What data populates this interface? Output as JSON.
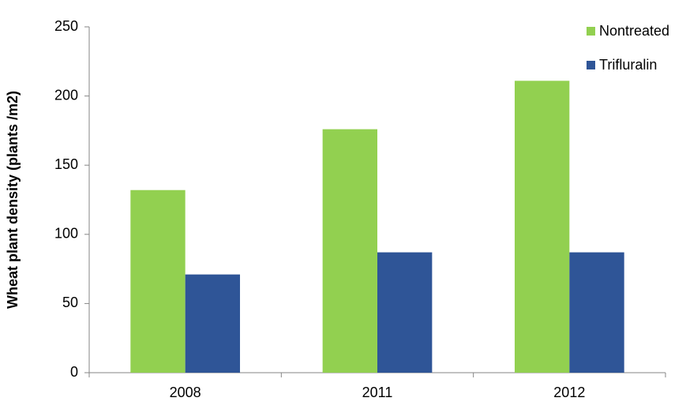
{
  "chart_data": {
    "type": "bar",
    "y_label": "Wheat plant density (plants /m2)",
    "categories": [
      "2008",
      "2011",
      "2012"
    ],
    "series": [
      {
        "name": "Nontreated",
        "color": "#92d050",
        "values": [
          132,
          176,
          211
        ]
      },
      {
        "name": "Trifluralin",
        "color": "#2f5597",
        "values": [
          71,
          87,
          87
        ]
      }
    ],
    "ylim": [
      0,
      250
    ],
    "yticks": [
      0,
      50,
      100,
      150,
      200,
      250
    ],
    "grid": false,
    "legend": "top-right"
  }
}
